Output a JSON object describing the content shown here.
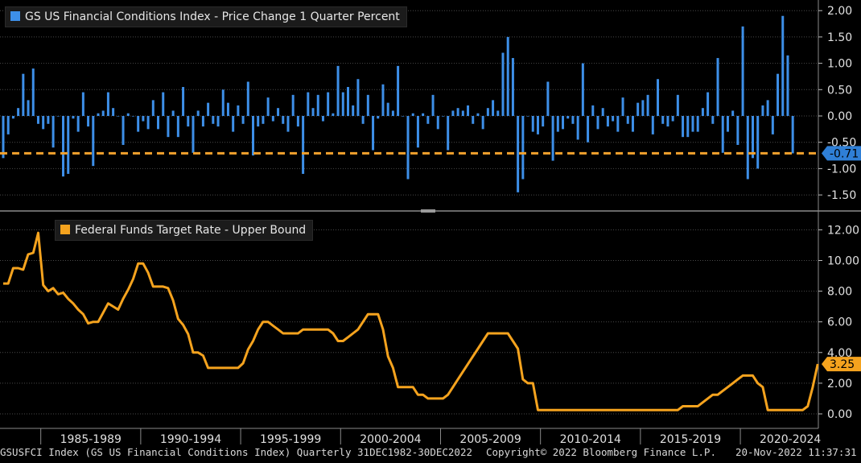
{
  "chart_data": [
    {
      "type": "bar",
      "title": "GS US Financial Conditions Index - Price Change 1 Quarter Percent",
      "color": "#3d8fe8",
      "ylim": [
        -1.8,
        2.1
      ],
      "yticks": [
        2.0,
        1.5,
        1.0,
        0.5,
        0.0,
        -0.5,
        -1.0,
        -1.5
      ],
      "ytick_labels": [
        "2.00",
        "1.50",
        "1.00",
        "0.50",
        "0.00",
        "-0.50",
        "-1.00",
        "-1.50"
      ],
      "last_value": -0.71,
      "last_value_label": "-0.71",
      "reference_line": {
        "value": -0.71,
        "color": "#f2a12d",
        "style": "dashed"
      },
      "grid": true,
      "legend_position": "top-left",
      "x_start": "1983Q1",
      "frequency": "quarterly",
      "values": [
        -0.8,
        -0.35,
        -0.05,
        0.15,
        0.8,
        0.3,
        0.9,
        -0.15,
        -0.25,
        -0.15,
        -0.6,
        0.0,
        -1.15,
        -1.1,
        -0.05,
        -0.3,
        0.45,
        -0.2,
        -0.95,
        0.05,
        0.1,
        0.45,
        0.15,
        0.0,
        -0.55,
        0.05,
        0.0,
        -0.3,
        -0.1,
        -0.25,
        0.3,
        -0.25,
        0.45,
        -0.4,
        0.1,
        -0.4,
        0.55,
        -0.2,
        -0.7,
        0.1,
        -0.2,
        0.25,
        -0.15,
        -0.2,
        0.5,
        0.25,
        -0.3,
        0.2,
        -0.15,
        0.65,
        -0.75,
        -0.2,
        -0.15,
        0.35,
        -0.1,
        0.15,
        -0.15,
        -0.3,
        0.4,
        -0.2,
        -1.1,
        0.45,
        0.15,
        0.4,
        -0.1,
        0.45,
        0.05,
        0.95,
        0.45,
        0.55,
        0.2,
        0.7,
        -0.15,
        0.4,
        -0.65,
        -0.05,
        0.6,
        0.25,
        0.1,
        0.95,
        0.0,
        -1.2,
        0.05,
        -0.6,
        0.05,
        -0.15,
        0.4,
        -0.25,
        0.0,
        -0.65,
        0.1,
        0.15,
        0.1,
        0.2,
        -0.15,
        0.05,
        -0.25,
        0.15,
        0.3,
        0.1,
        1.2,
        1.5,
        1.1,
        -1.45,
        -1.2,
        0.0,
        -0.3,
        -0.35,
        -0.2,
        0.65,
        -0.85,
        -0.3,
        -0.25,
        -0.05,
        -0.15,
        -0.45,
        1.0,
        -0.5,
        0.2,
        -0.25,
        0.15,
        -0.2,
        -0.1,
        -0.3,
        0.35,
        -0.15,
        -0.3,
        0.25,
        0.3,
        0.4,
        -0.35,
        0.7,
        -0.15,
        -0.2,
        -0.1,
        0.4,
        -0.4,
        -0.4,
        -0.3,
        -0.3,
        0.15,
        0.45,
        -0.15,
        1.1,
        -0.7,
        -0.3,
        0.1,
        -0.55,
        1.7,
        -1.2,
        -0.8,
        -1.0,
        0.2,
        0.3,
        -0.35,
        0.8,
        1.9,
        1.15,
        -0.71
      ]
    },
    {
      "type": "line",
      "title": "Federal Funds Target Rate - Upper Bound",
      "color": "#f5a31e",
      "ylim": [
        -1.0,
        13.0
      ],
      "yticks": [
        12.0,
        10.0,
        8.0,
        6.0,
        4.0,
        2.0,
        0.0
      ],
      "ytick_labels": [
        "12.00",
        "10.00",
        "8.00",
        "6.00",
        "4.00",
        "2.00",
        "0.00"
      ],
      "last_value": 3.25,
      "last_value_label": "3.25",
      "grid": true,
      "legend_position": "top-left",
      "x_start": "1983Q1",
      "frequency": "quarterly",
      "values": [
        8.5,
        8.5,
        9.5,
        9.5,
        9.4,
        10.4,
        10.5,
        11.8,
        8.4,
        8.0,
        8.2,
        7.8,
        7.9,
        7.5,
        7.2,
        6.8,
        6.5,
        5.9,
        6.0,
        6.0,
        6.6,
        7.2,
        7.0,
        6.8,
        7.5,
        8.1,
        8.8,
        9.8,
        9.8,
        9.2,
        8.3,
        8.3,
        8.3,
        8.2,
        7.4,
        6.2,
        5.8,
        5.2,
        4.0,
        4.0,
        3.8,
        3.0,
        3.0,
        3.0,
        3.0,
        3.0,
        3.0,
        3.0,
        3.3,
        4.2,
        4.75,
        5.5,
        6.0,
        6.0,
        5.75,
        5.5,
        5.25,
        5.25,
        5.25,
        5.25,
        5.5,
        5.5,
        5.5,
        5.5,
        5.5,
        5.5,
        5.25,
        4.75,
        4.75,
        5.0,
        5.25,
        5.5,
        6.0,
        6.5,
        6.5,
        6.5,
        5.5,
        3.75,
        3.0,
        1.75,
        1.75,
        1.75,
        1.75,
        1.25,
        1.25,
        1.0,
        1.0,
        1.0,
        1.0,
        1.25,
        1.75,
        2.25,
        2.75,
        3.25,
        3.75,
        4.25,
        4.75,
        5.25,
        5.25,
        5.25,
        5.25,
        5.25,
        4.75,
        4.25,
        2.25,
        2.0,
        2.0,
        0.25,
        0.25,
        0.25,
        0.25,
        0.25,
        0.25,
        0.25,
        0.25,
        0.25,
        0.25,
        0.25,
        0.25,
        0.25,
        0.25,
        0.25,
        0.25,
        0.25,
        0.25,
        0.25,
        0.25,
        0.25,
        0.25,
        0.25,
        0.25,
        0.25,
        0.25,
        0.25,
        0.25,
        0.25,
        0.5,
        0.5,
        0.5,
        0.5,
        0.75,
        1.0,
        1.25,
        1.25,
        1.5,
        1.75,
        2.0,
        2.25,
        2.5,
        2.5,
        2.5,
        2.0,
        1.75,
        0.25,
        0.25,
        0.25,
        0.25,
        0.25,
        0.25,
        0.25,
        0.25,
        0.5,
        1.75,
        3.25
      ]
    }
  ],
  "x_axis": {
    "labels": [
      "1985-1989",
      "1990-1994",
      "1995-1999",
      "2000-2004",
      "2005-2009",
      "2010-2014",
      "2015-2019",
      "2020-2024"
    ]
  },
  "footer": {
    "security": "GSUSFCI Index (GS US Financial Conditions Index) Quarterly 31DEC1982-30DEC2022",
    "copyright": "Copyright© 2022 Bloomberg Finance L.P.",
    "timestamp": "20-Nov-2022 11:37:31"
  },
  "colors": {
    "background": "#000000",
    "grid": "#4a4a4a",
    "axis_text": "#e0e0e0",
    "label_box_blue": "#2f7fd6",
    "label_box_orange": "#f5a31e"
  }
}
